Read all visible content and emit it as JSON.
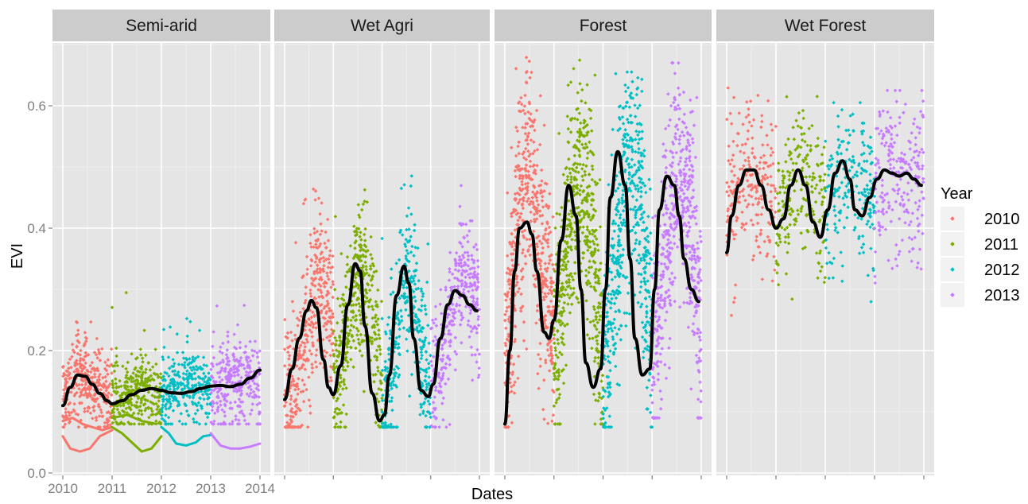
{
  "chart_data": {
    "type": "scatter",
    "xlabel": "Dates",
    "ylabel": "EVI",
    "ylim": [
      0,
      0.7
    ],
    "y_ticks": [
      0.0,
      0.2,
      0.4,
      0.6
    ],
    "y_tick_labels": [
      "0.0",
      "0.2",
      "0.4",
      "0.6"
    ],
    "xlim": [
      2010,
      2014
    ],
    "x_ticks": [
      2010,
      2011,
      2012,
      2013,
      2014
    ],
    "x_tick_labels": [
      "2010",
      "2011",
      "2012",
      "2013",
      "2014"
    ],
    "grid": true,
    "legend": {
      "title": "Year",
      "placement": "right",
      "entries": [
        "2010",
        "2011",
        "2012",
        "2013"
      ]
    },
    "colors": {
      "2010": "#F8766D",
      "2011": "#7CAE00",
      "2012": "#00BFC4",
      "2013": "#C77CFF",
      "smooth": "#000000",
      "panel_bg": "#E5E5E5",
      "strip_bg": "#CCCCCC"
    },
    "panels": [
      {
        "name": "Semi-arid",
        "smooth": {
          "x": [
            2010.0,
            2010.15,
            2010.3,
            2010.45,
            2010.6,
            2010.75,
            2010.9,
            2011.0,
            2011.2,
            2011.4,
            2011.6,
            2011.8,
            2012.0,
            2012.2,
            2012.4,
            2012.6,
            2012.8,
            2013.0,
            2013.2,
            2013.4,
            2013.6,
            2013.8,
            2014.0
          ],
          "y": [
            0.11,
            0.14,
            0.16,
            0.158,
            0.145,
            0.13,
            0.118,
            0.113,
            0.118,
            0.128,
            0.135,
            0.138,
            0.135,
            0.131,
            0.13,
            0.133,
            0.138,
            0.142,
            0.143,
            0.141,
            0.145,
            0.155,
            0.168
          ]
        },
        "bands": [
          {
            "year": "2010",
            "start": 2010.0,
            "end": 2011.0,
            "center": [
              0.12,
              0.17,
              0.14,
              0.12
            ],
            "spread": 0.035,
            "top": 0.31,
            "bottom": 0.075,
            "count": 330
          },
          {
            "year": "2011",
            "start": 2011.0,
            "end": 2012.0,
            "center": [
              0.12,
              0.13,
              0.14,
              0.13
            ],
            "spread": 0.03,
            "top": 0.325,
            "bottom": 0.08,
            "count": 300
          },
          {
            "year": "2012",
            "start": 2012.0,
            "end": 2013.0,
            "center": [
              0.13,
              0.14,
              0.145,
              0.13
            ],
            "spread": 0.03,
            "top": 0.28,
            "bottom": 0.08,
            "count": 280
          },
          {
            "year": "2013",
            "start": 2013.0,
            "end": 2014.0,
            "center": [
              0.14,
              0.15,
              0.15,
              0.15
            ],
            "spread": 0.04,
            "top": 0.325,
            "bottom": 0.08,
            "count": 300
          }
        ],
        "traces": [
          {
            "year": "2010",
            "x": [
              2010.0,
              2010.15,
              2010.35,
              2010.55,
              2010.75,
              2011.0
            ],
            "y": [
              0.06,
              0.04,
              0.035,
              0.04,
              0.06,
              0.07
            ]
          },
          {
            "year": "2010",
            "x": [
              2010.0,
              2010.2,
              2010.4,
              2010.6,
              2010.8,
              2011.0
            ],
            "y": [
              0.085,
              0.09,
              0.08,
              0.075,
              0.07,
              0.075
            ]
          },
          {
            "year": "2011",
            "x": [
              2011.0,
              2011.2,
              2011.4,
              2011.6,
              2011.8,
              2012.0
            ],
            "y": [
              0.075,
              0.065,
              0.05,
              0.035,
              0.04,
              0.06
            ]
          },
          {
            "year": "2011",
            "x": [
              2011.0,
              2011.3,
              2011.6,
              2011.9
            ],
            "y": [
              0.09,
              0.095,
              0.085,
              0.08
            ]
          },
          {
            "year": "2012",
            "x": [
              2012.0,
              2012.15,
              2012.3,
              2012.5,
              2012.7,
              2012.85,
              2013.0
            ],
            "y": [
              0.075,
              0.065,
              0.048,
              0.045,
              0.05,
              0.06,
              0.062
            ]
          },
          {
            "year": "2013",
            "x": [
              2013.0,
              2013.2,
              2013.4,
              2013.6,
              2013.8,
              2014.0
            ],
            "y": [
              0.065,
              0.045,
              0.04,
              0.04,
              0.043,
              0.048
            ]
          }
        ]
      },
      {
        "name": "Wet Agri",
        "smooth": {
          "x": [
            2010.0,
            2010.15,
            2010.3,
            2010.45,
            2010.55,
            2010.65,
            2010.8,
            2010.9,
            2011.0,
            2011.15,
            2011.3,
            2011.45,
            2011.55,
            2011.65,
            2011.8,
            2011.95,
            2012.05,
            2012.15,
            2012.3,
            2012.45,
            2012.55,
            2012.65,
            2012.8,
            2012.95,
            2013.05,
            2013.2,
            2013.35,
            2013.5,
            2013.65,
            2013.8,
            2013.95
          ],
          "y": [
            0.12,
            0.17,
            0.22,
            0.265,
            0.282,
            0.27,
            0.185,
            0.14,
            0.128,
            0.175,
            0.275,
            0.342,
            0.33,
            0.24,
            0.13,
            0.085,
            0.095,
            0.16,
            0.29,
            0.338,
            0.31,
            0.22,
            0.135,
            0.125,
            0.145,
            0.22,
            0.275,
            0.298,
            0.29,
            0.275,
            0.265
          ]
        },
        "bands": [
          {
            "year": "2010",
            "start": 2010.0,
            "end": 2011.0,
            "center": [
              0.11,
              0.15,
              0.25,
              0.32,
              0.24
            ],
            "spread": 0.06,
            "top": 0.5,
            "bottom": 0.075,
            "count": 420
          },
          {
            "year": "2011",
            "start": 2011.0,
            "end": 2012.0,
            "center": [
              0.12,
              0.22,
              0.33,
              0.28,
              0.12
            ],
            "spread": 0.06,
            "top": 0.5,
            "bottom": 0.075,
            "count": 420
          },
          {
            "year": "2012",
            "start": 2012.0,
            "end": 2013.0,
            "center": [
              0.09,
              0.2,
              0.33,
              0.24,
              0.12
            ],
            "spread": 0.06,
            "top": 0.52,
            "bottom": 0.075,
            "count": 380
          },
          {
            "year": "2013",
            "start": 2013.0,
            "end": 2014.0,
            "center": [
              0.12,
              0.2,
              0.3,
              0.32,
              0.28
            ],
            "spread": 0.05,
            "top": 0.475,
            "bottom": 0.075,
            "count": 330
          }
        ],
        "traces": []
      },
      {
        "name": "Forest",
        "smooth": {
          "x": [
            2010.0,
            2010.1,
            2010.2,
            2010.3,
            2010.45,
            2010.55,
            2010.65,
            2010.8,
            2010.9,
            2011.0,
            2011.15,
            2011.3,
            2011.45,
            2011.55,
            2011.65,
            2011.8,
            2011.95,
            2012.05,
            2012.15,
            2012.3,
            2012.45,
            2012.55,
            2012.65,
            2012.8,
            2012.95,
            2013.05,
            2013.15,
            2013.3,
            2013.45,
            2013.55,
            2013.65,
            2013.8,
            2013.95
          ],
          "y": [
            0.08,
            0.2,
            0.33,
            0.4,
            0.41,
            0.39,
            0.33,
            0.23,
            0.22,
            0.25,
            0.38,
            0.47,
            0.42,
            0.3,
            0.18,
            0.14,
            0.17,
            0.3,
            0.45,
            0.525,
            0.47,
            0.35,
            0.22,
            0.16,
            0.17,
            0.3,
            0.43,
            0.485,
            0.47,
            0.42,
            0.35,
            0.3,
            0.28
          ]
        },
        "bands": [
          {
            "year": "2010",
            "start": 2010.0,
            "end": 2011.0,
            "center": [
              0.15,
              0.4,
              0.5,
              0.35,
              0.25
            ],
            "spread": 0.09,
            "top": 0.695,
            "bottom": 0.075,
            "count": 580
          },
          {
            "year": "2011",
            "start": 2011.0,
            "end": 2012.0,
            "center": [
              0.2,
              0.35,
              0.5,
              0.4,
              0.15
            ],
            "spread": 0.09,
            "top": 0.675,
            "bottom": 0.08,
            "count": 560
          },
          {
            "year": "2012",
            "start": 2012.0,
            "end": 2013.0,
            "center": [
              0.15,
              0.35,
              0.5,
              0.45,
              0.2
            ],
            "spread": 0.09,
            "top": 0.655,
            "bottom": 0.075,
            "count": 540
          },
          {
            "year": "2013",
            "start": 2013.0,
            "end": 2014.0,
            "center": [
              0.15,
              0.35,
              0.5,
              0.45,
              0.25
            ],
            "spread": 0.09,
            "top": 0.67,
            "bottom": 0.09,
            "count": 520
          }
        ],
        "traces": []
      },
      {
        "name": "Wet Forest",
        "smooth": {
          "x": [
            2010.0,
            2010.1,
            2010.25,
            2010.4,
            2010.55,
            2010.7,
            2010.85,
            2011.0,
            2011.15,
            2011.3,
            2011.45,
            2011.6,
            2011.75,
            2011.9,
            2012.05,
            2012.2,
            2012.35,
            2012.5,
            2012.6,
            2012.75,
            2012.9,
            2013.05,
            2013.2,
            2013.35,
            2013.5,
            2013.65,
            2013.8,
            2013.95
          ],
          "y": [
            0.36,
            0.42,
            0.47,
            0.495,
            0.495,
            0.47,
            0.43,
            0.4,
            0.415,
            0.47,
            0.495,
            0.47,
            0.41,
            0.385,
            0.43,
            0.49,
            0.51,
            0.48,
            0.43,
            0.42,
            0.45,
            0.48,
            0.495,
            0.49,
            0.485,
            0.49,
            0.48,
            0.47
          ]
        },
        "bands": [
          {
            "year": "2010",
            "start": 2010.0,
            "end": 2011.0,
            "center": [
              0.42,
              0.47,
              0.5,
              0.47,
              0.44
            ],
            "spread": 0.06,
            "top": 0.655,
            "bottom": 0.08,
            "count": 230
          },
          {
            "year": "2011",
            "start": 2011.0,
            "end": 2012.0,
            "center": [
              0.42,
              0.46,
              0.5,
              0.46,
              0.42
            ],
            "spread": 0.06,
            "top": 0.615,
            "bottom": 0.17,
            "count": 220
          },
          {
            "year": "2012",
            "start": 2012.0,
            "end": 2013.0,
            "center": [
              0.42,
              0.47,
              0.5,
              0.47,
              0.45
            ],
            "spread": 0.06,
            "top": 0.605,
            "bottom": 0.23,
            "count": 210
          },
          {
            "year": "2013",
            "start": 2013.0,
            "end": 2014.0,
            "center": [
              0.45,
              0.49,
              0.5,
              0.48,
              0.46
            ],
            "spread": 0.07,
            "top": 0.625,
            "bottom": 0.245,
            "count": 230
          }
        ],
        "traces": []
      }
    ]
  }
}
